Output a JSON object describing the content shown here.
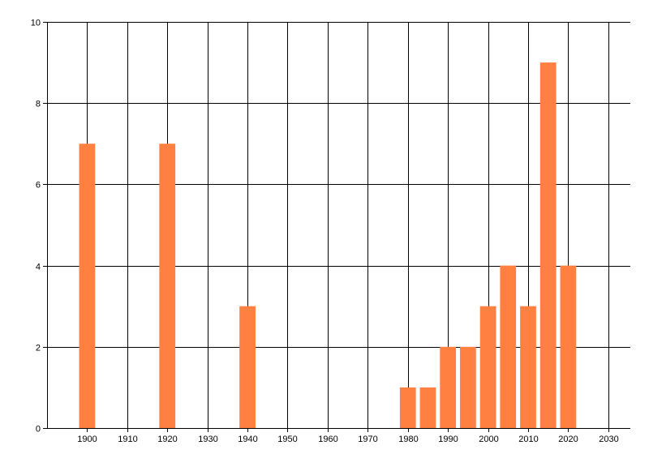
{
  "chart_data": {
    "type": "bar",
    "title": "",
    "xlabel": "",
    "ylabel": "",
    "x": [
      1900,
      1920,
      1940,
      1980,
      1985,
      1990,
      1995,
      2000,
      2005,
      2010,
      2015,
      2020
    ],
    "values": [
      7,
      7,
      3,
      1,
      1,
      2,
      2,
      3,
      4,
      3,
      9,
      4
    ],
    "xlim": [
      1890,
      2035.5
    ],
    "ylim": [
      0,
      10
    ],
    "xticks": [
      1900,
      1910,
      1920,
      1930,
      1940,
      1950,
      1960,
      1970,
      1980,
      1990,
      2000,
      2010,
      2020,
      2030
    ],
    "yticks": [
      0,
      2,
      4,
      6,
      8,
      10
    ],
    "bar_width_years": 4,
    "grid": true,
    "bar_color": "#FF8040",
    "grid_color": "#000000"
  }
}
